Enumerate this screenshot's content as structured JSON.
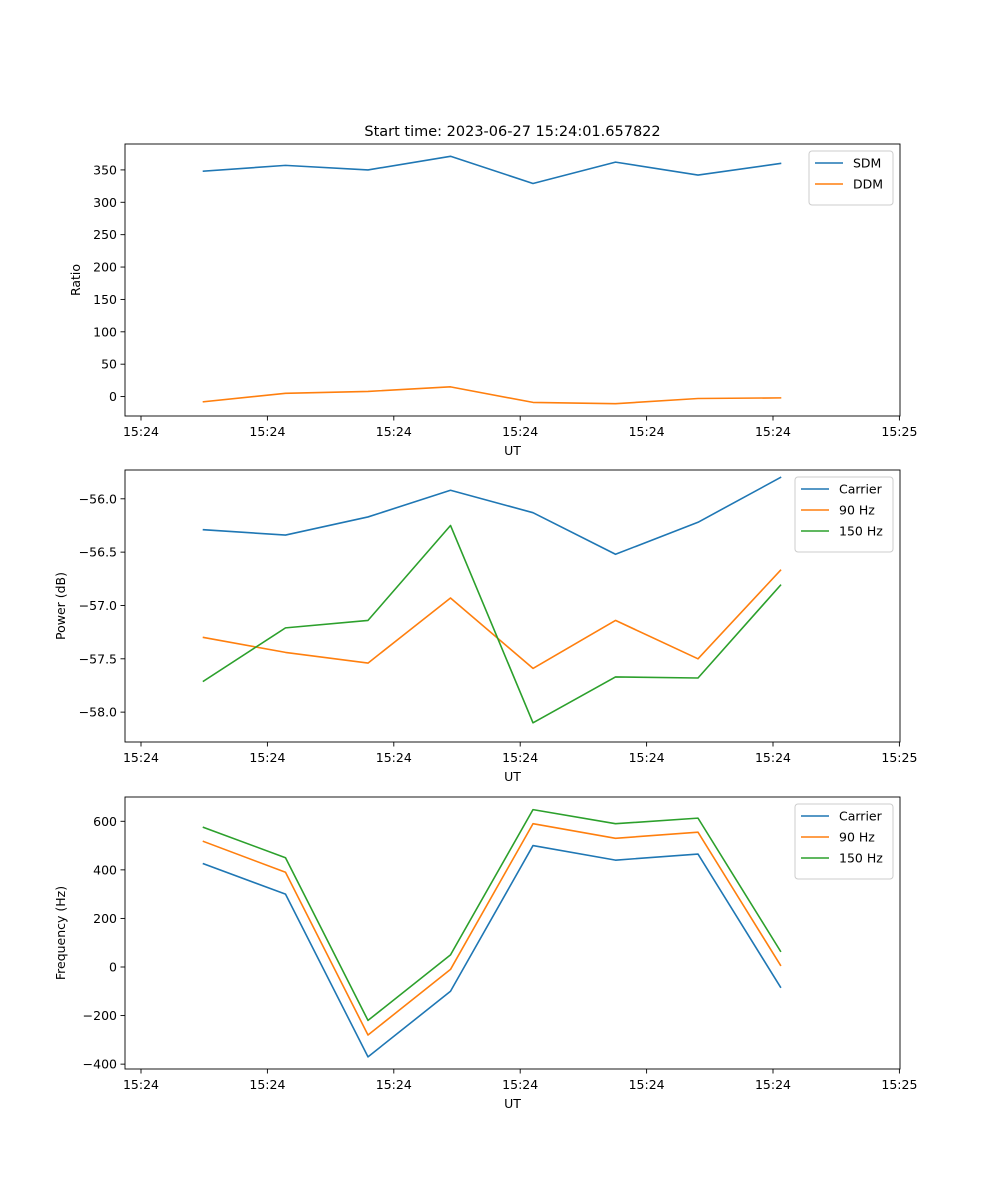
{
  "figure": {
    "title": "Start time: 2023-06-27 15:24:01.657822"
  },
  "chart_data": [
    {
      "type": "line",
      "title": "Start time: 2023-06-27 15:24:01.657822",
      "xlabel": "UT",
      "ylabel": "Ratio",
      "x_tick_labels": [
        "15:24",
        "15:24",
        "15:24",
        "15:24",
        "15:24",
        "15:24",
        "15:25"
      ],
      "y_ticks": [
        0,
        50,
        100,
        150,
        200,
        250,
        300,
        350
      ],
      "ylim": [
        -30,
        390
      ],
      "x_index": [
        0,
        1,
        2,
        3,
        4,
        5,
        6,
        7
      ],
      "legend_position": "top-right",
      "grid": false,
      "series": [
        {
          "name": "SDM",
          "color": "#1f77b4",
          "values": [
            348,
            357,
            350,
            371,
            329,
            362,
            342,
            360
          ]
        },
        {
          "name": "DDM",
          "color": "#ff7f0e",
          "values": [
            -8,
            5,
            8,
            15,
            -9,
            -11,
            -3,
            -2
          ]
        }
      ]
    },
    {
      "type": "line",
      "title": "",
      "xlabel": "UT",
      "ylabel": "Power (dB)",
      "x_tick_labels": [
        "15:24",
        "15:24",
        "15:24",
        "15:24",
        "15:24",
        "15:24",
        "15:25"
      ],
      "y_ticks": [
        -58.0,
        -57.5,
        -57.0,
        -56.5,
        -56.0
      ],
      "y_tick_labels": [
        "−58.0",
        "−57.5",
        "−57.0",
        "−56.5",
        "−56.0"
      ],
      "ylim": [
        -58.28,
        -55.73
      ],
      "x_index": [
        0,
        1,
        2,
        3,
        4,
        5,
        6,
        7
      ],
      "legend_position": "top-right",
      "grid": false,
      "series": [
        {
          "name": "Carrier",
          "color": "#1f77b4",
          "values": [
            -56.29,
            -56.34,
            -56.17,
            -55.92,
            -56.13,
            -56.52,
            -56.22,
            -55.8
          ]
        },
        {
          "name": "90 Hz",
          "color": "#ff7f0e",
          "values": [
            -57.3,
            -57.44,
            -57.54,
            -56.93,
            -57.59,
            -57.14,
            -57.5,
            -56.67
          ]
        },
        {
          "name": "150 Hz",
          "color": "#2ca02c",
          "values": [
            -57.71,
            -57.21,
            -57.14,
            -56.25,
            -58.1,
            -57.67,
            -57.68,
            -56.81
          ]
        }
      ]
    },
    {
      "type": "line",
      "title": "",
      "xlabel": "UT",
      "ylabel": "Frequency (Hz)",
      "x_tick_labels": [
        "15:24",
        "15:24",
        "15:24",
        "15:24",
        "15:24",
        "15:24",
        "15:25"
      ],
      "y_ticks": [
        -400,
        -200,
        0,
        200,
        400,
        600
      ],
      "y_tick_labels": [
        "−400",
        "−200",
        "0",
        "200",
        "400",
        "600"
      ],
      "ylim": [
        -420,
        700
      ],
      "x_index": [
        0,
        1,
        2,
        3,
        4,
        5,
        6,
        7
      ],
      "legend_position": "top-right",
      "grid": false,
      "series": [
        {
          "name": "Carrier",
          "color": "#1f77b4",
          "values": [
            425,
            300,
            -370,
            -100,
            500,
            440,
            465,
            -83
          ]
        },
        {
          "name": "90 Hz",
          "color": "#ff7f0e",
          "values": [
            517,
            390,
            -280,
            -10,
            590,
            530,
            555,
            7
          ]
        },
        {
          "name": "150 Hz",
          "color": "#2ca02c",
          "values": [
            575,
            450,
            -220,
            50,
            648,
            590,
            613,
            65
          ]
        }
      ]
    }
  ]
}
